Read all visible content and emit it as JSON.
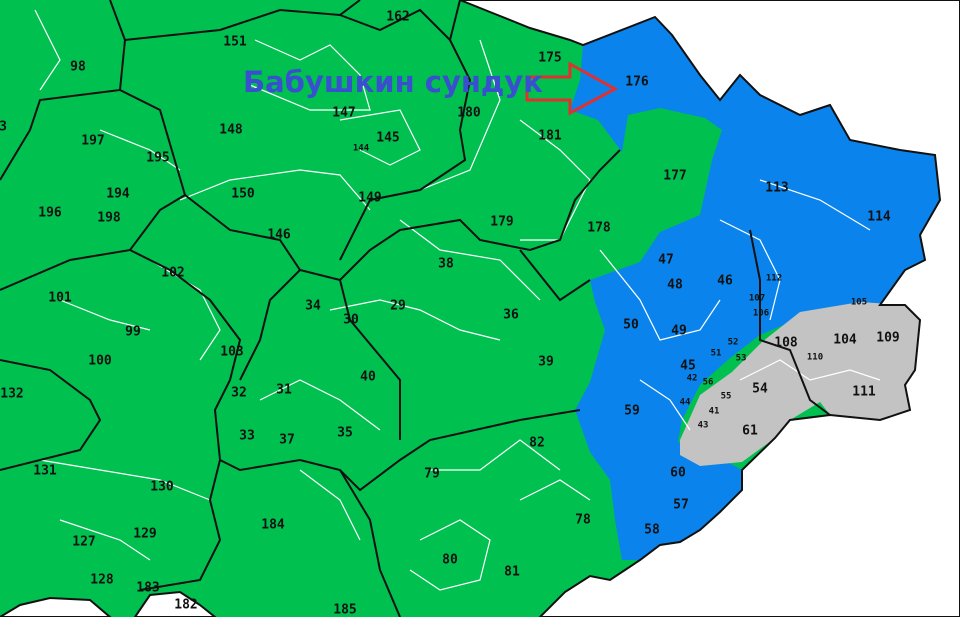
{
  "caption": "Бабушкин сундук",
  "colors": {
    "green_zone": "#00c050",
    "blue_zone": "#0a84ec",
    "gray_zone": "#c3c3c3",
    "caption": "#3a4fd0",
    "arrow": "#e03030",
    "outside": "#ffffff"
  },
  "pointer": {
    "icon": "red-outline-arrow-icon",
    "points_to": "176"
  },
  "regions": [
    "162",
    "151",
    "98",
    "3",
    "147",
    "148",
    "145",
    "144",
    "180",
    "175",
    "176",
    "181",
    "197",
    "195",
    "194",
    "196",
    "198",
    "150",
    "149",
    "146",
    "177",
    "113",
    "114",
    "179",
    "178",
    "102",
    "38",
    "47",
    "48",
    "46",
    "101",
    "99",
    "34",
    "29",
    "30",
    "36",
    "50",
    "49",
    "52",
    "51",
    "107",
    "112",
    "106",
    "105",
    "108",
    "104",
    "109",
    "110",
    "53",
    "45",
    "100",
    "103",
    "40",
    "39",
    "132",
    "31",
    "32",
    "33",
    "37",
    "35",
    "56",
    "55",
    "54",
    "42",
    "44",
    "41",
    "43",
    "59",
    "61",
    "111",
    "82",
    "131",
    "130",
    "79",
    "60",
    "184",
    "57",
    "78",
    "127",
    "129",
    "58",
    "80",
    "81",
    "128",
    "183",
    "182",
    "185"
  ]
}
